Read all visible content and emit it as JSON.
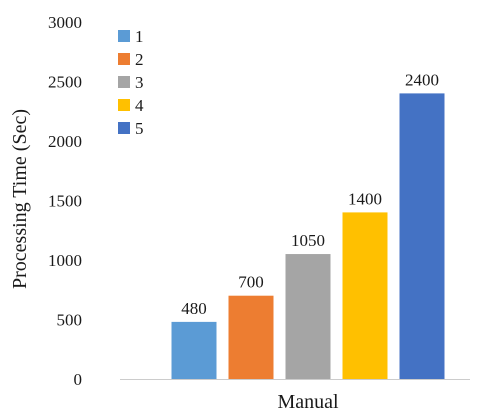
{
  "chart_data": {
    "type": "bar",
    "categories": [
      "Manual"
    ],
    "series": [
      {
        "name": "1",
        "values": [
          480
        ],
        "color": "#5b9bd5"
      },
      {
        "name": "2",
        "values": [
          700
        ],
        "color": "#ed7d31"
      },
      {
        "name": "3",
        "values": [
          1050
        ],
        "color": "#a5a5a5"
      },
      {
        "name": "4",
        "values": [
          1400
        ],
        "color": "#ffc000"
      },
      {
        "name": "5",
        "values": [
          2400
        ],
        "color": "#4472c4"
      }
    ],
    "title": "",
    "xlabel": "Manual",
    "ylabel": "Processing Time  (Sec)",
    "ylim": [
      0,
      3000
    ],
    "yticks": [
      0,
      500,
      1000,
      1500,
      2000,
      2500,
      3000
    ],
    "grid": false,
    "legend_position": "top-left",
    "data_labels": true
  }
}
